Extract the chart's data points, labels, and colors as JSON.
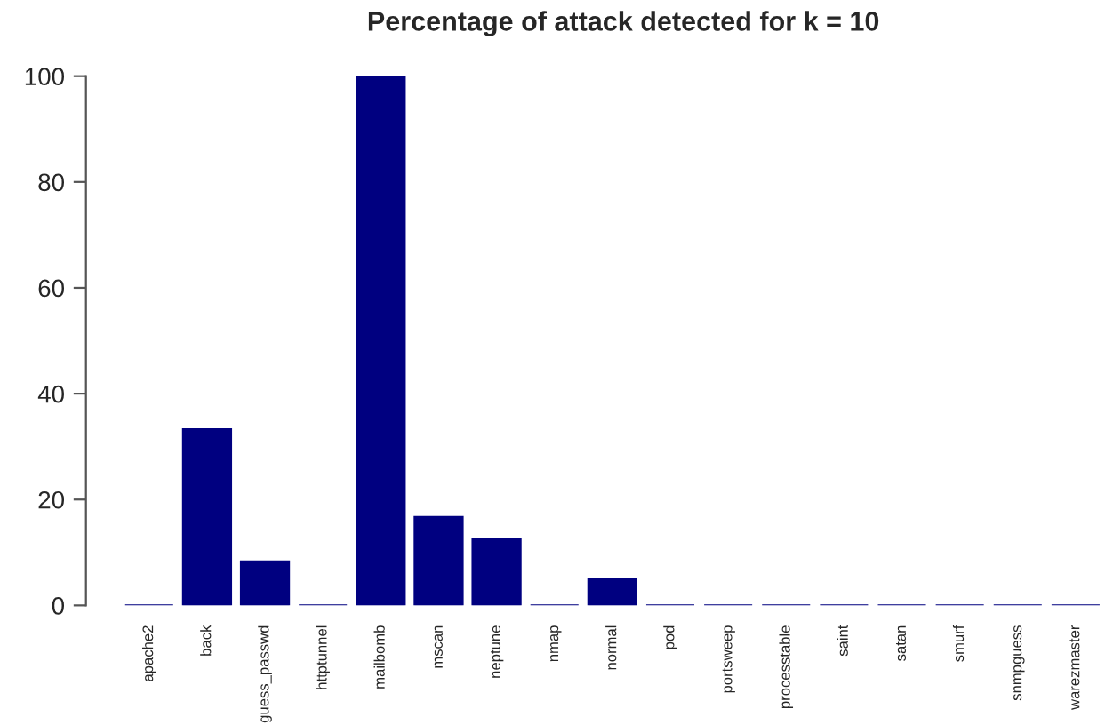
{
  "chart_data": {
    "type": "bar",
    "title": "Percentage of attack detected for k = 10",
    "categories": [
      "apache2",
      "back",
      "guess_passwd",
      "httptunnel",
      "mailbomb",
      "mscan",
      "neptune",
      "nmap",
      "normal",
      "pod",
      "portsweep",
      "processtable",
      "saint",
      "satan",
      "smurf",
      "snmpguess",
      "warezmaster"
    ],
    "values": [
      0,
      33.3,
      8.3,
      0,
      100,
      16.7,
      12.5,
      0,
      5,
      0,
      0,
      0,
      0,
      0,
      0,
      0,
      0
    ],
    "color": "#000080",
    "ylim": [
      0,
      100
    ],
    "yticks": [
      0,
      20,
      40,
      60,
      80,
      100
    ],
    "grid": false,
    "legend": false
  }
}
